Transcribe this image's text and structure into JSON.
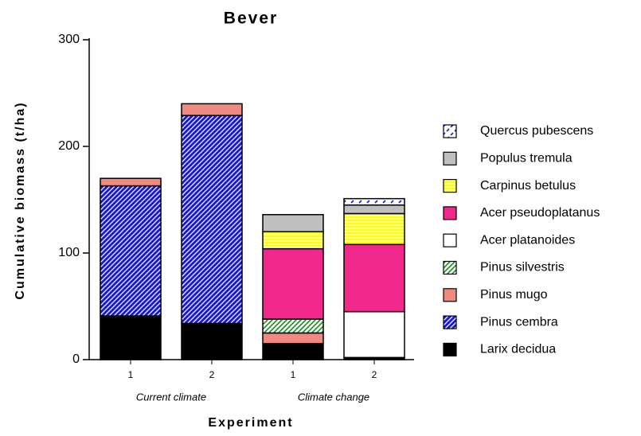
{
  "chart_data": {
    "type": "stacked-bar",
    "title": "Bever",
    "y_label": "Cumulative  biomass  (t/ha)",
    "x_label": "Experiment",
    "categories": [
      "1",
      "2",
      "1",
      "2"
    ],
    "groups": [
      "Current climate",
      "Climate change"
    ],
    "ylim": [
      0,
      300
    ],
    "yticks": [
      0,
      100,
      200,
      300
    ],
    "grid": false,
    "series": [
      {
        "name": "Larix decidua",
        "color": "#000000",
        "values": [
          41,
          34,
          15,
          2
        ]
      },
      {
        "name": "Pinus cembra",
        "color": "#1a1acc",
        "hatch": "diagonal",
        "values": [
          122,
          195,
          0,
          0
        ]
      },
      {
        "name": "Pinus mugo",
        "color": "#f08a80",
        "values": [
          7,
          11,
          10,
          0
        ]
      },
      {
        "name": "Pinus silvestris",
        "color": "#1a8a1a",
        "hatch": "diagonal-light",
        "values": [
          0,
          0,
          13,
          0
        ]
      },
      {
        "name": "Acer platanoides",
        "color": "#ffffff",
        "values": [
          0,
          0,
          0,
          43
        ]
      },
      {
        "name": "Acer pseudoplatanus",
        "color": "#f0288c",
        "values": [
          0,
          0,
          66,
          63
        ]
      },
      {
        "name": "Carpinus betulus",
        "color": "#ffff00",
        "hatch": "horizontal",
        "values": [
          0,
          0,
          16,
          29
        ]
      },
      {
        "name": "Populus tremula",
        "color": "#c0c0c0",
        "values": [
          0,
          0,
          16,
          8
        ]
      },
      {
        "name": "Quercus pubescens",
        "color": "#1a1acc",
        "hatch": "dashes",
        "values": [
          0,
          0,
          0,
          6
        ]
      }
    ]
  }
}
